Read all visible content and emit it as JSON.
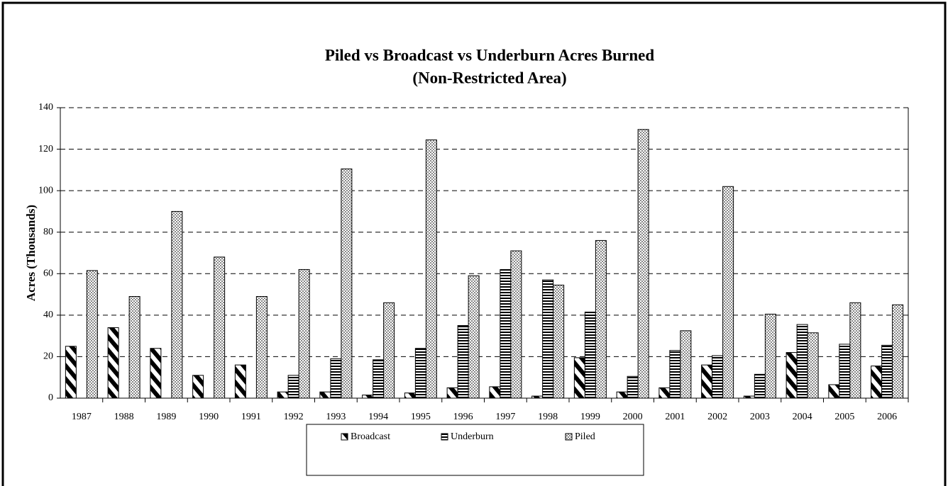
{
  "chart_data": {
    "type": "bar",
    "title": "Piled vs Broadcast vs Underburn Acres Burned",
    "subtitle": "(Non-Restricted Area)",
    "y_label": "Acres (Thousands)",
    "categories": [
      "1987",
      "1988",
      "1989",
      "1990",
      "1991",
      "1992",
      "1993",
      "1994",
      "1995",
      "1996",
      "1997",
      "1998",
      "1999",
      "2000",
      "2001",
      "2002",
      "2003",
      "2004",
      "2005",
      "2006"
    ],
    "series": [
      {
        "name": "Broadcast",
        "color": "#000000",
        "pattern": "diagonal",
        "values": [
          25,
          34,
          24,
          11,
          16,
          3,
          3,
          1.5,
          2.5,
          5,
          5.5,
          1,
          19.5,
          3,
          5,
          16,
          1,
          22,
          6.5,
          15.5
        ]
      },
      {
        "name": "Underburn",
        "color": "#000000",
        "pattern": "horizontal",
        "values": [
          0,
          0,
          0,
          0,
          0,
          11,
          19,
          18.5,
          24,
          35,
          62,
          57,
          41.5,
          10.5,
          23,
          20.5,
          11.5,
          35.5,
          26,
          25.5
        ]
      },
      {
        "name": "Piled",
        "color": "#888888",
        "pattern": "checker",
        "values": [
          61.5,
          49,
          90,
          68,
          49,
          62,
          110.5,
          46,
          124.5,
          59,
          71,
          54.5,
          76,
          129.5,
          32.5,
          102,
          40.5,
          31.5,
          46,
          45
        ]
      }
    ],
    "ylim": [
      0,
      140
    ],
    "yticks": [
      0,
      20,
      40,
      60,
      80,
      100,
      120,
      140
    ],
    "grid": true,
    "legend": "bottom"
  }
}
